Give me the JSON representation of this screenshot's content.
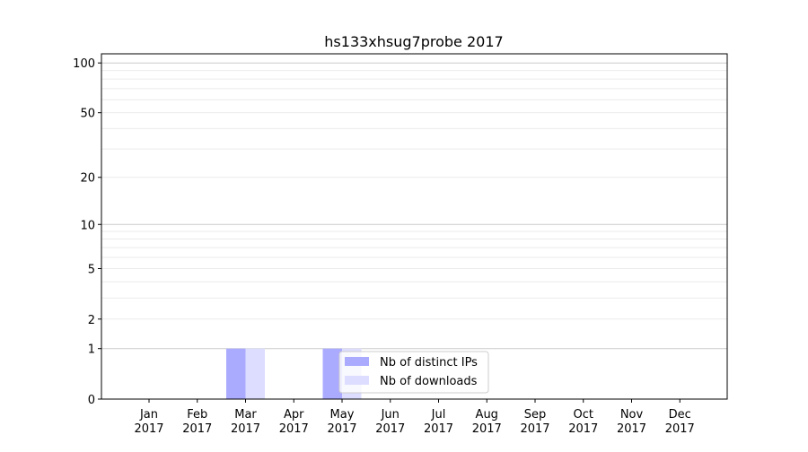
{
  "chart_data": {
    "type": "bar",
    "title": "hs133xhsug7probe 2017",
    "xlabel": "",
    "ylabel": "",
    "y_scale": "log(1+y)",
    "ylim": [
      0,
      113
    ],
    "grid": true,
    "legend_placement": "lower-center",
    "categories": [
      "Jan\n2017",
      "Feb\n2017",
      "Mar\n2017",
      "Apr\n2017",
      "May\n2017",
      "Jun\n2017",
      "Jul\n2017",
      "Aug\n2017",
      "Sep\n2017",
      "Oct\n2017",
      "Nov\n2017",
      "Dec\n2017"
    ],
    "y_ticks": [
      0,
      1,
      2,
      5,
      10,
      20,
      50,
      100
    ],
    "series": [
      {
        "name": "Nb of distinct IPs",
        "color": "#aaaaff",
        "values": [
          0,
          0,
          1,
          0,
          1,
          0,
          0,
          0,
          0,
          0,
          0,
          0
        ]
      },
      {
        "name": "Nb of downloads",
        "color": "#ddddff",
        "values": [
          0,
          0,
          1,
          0,
          1,
          0,
          0,
          0,
          0,
          0,
          0,
          0
        ]
      }
    ]
  }
}
